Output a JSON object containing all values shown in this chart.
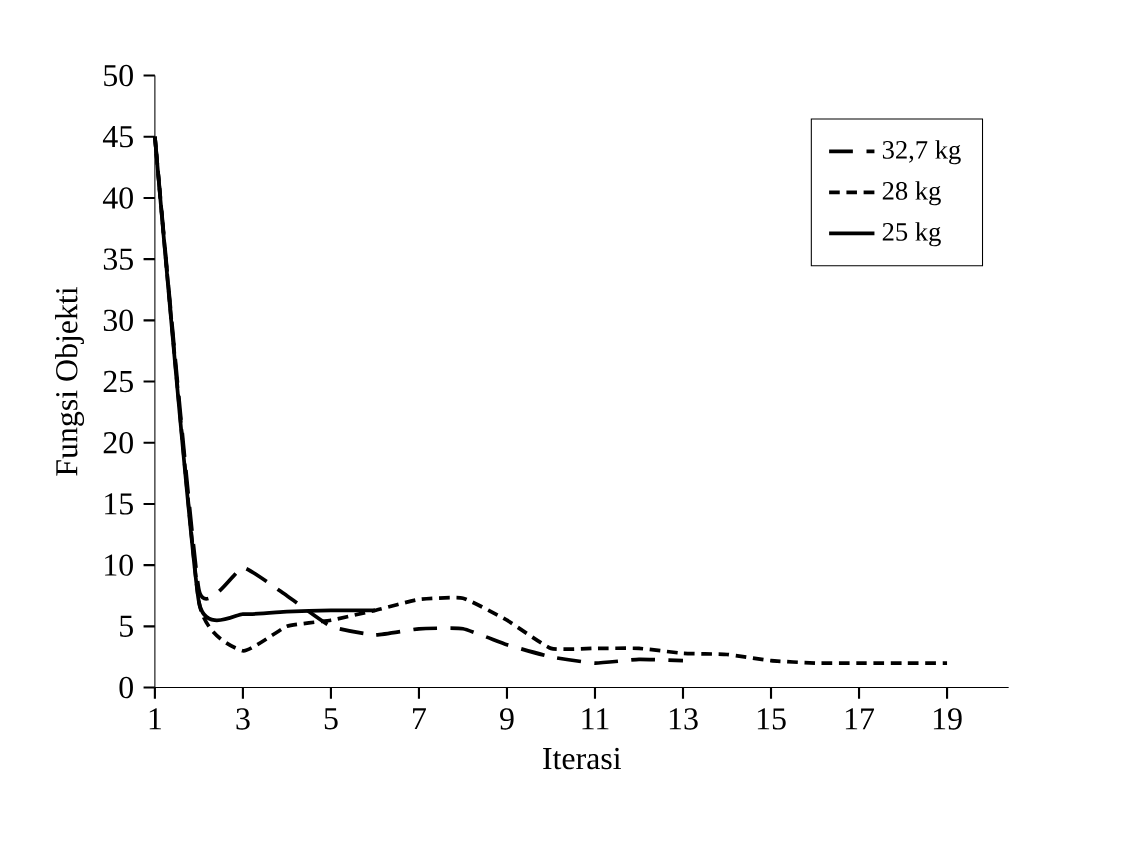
{
  "chart_data": {
    "type": "line",
    "xlabel": "Iterasi",
    "ylabel": "Fungsi Objekti",
    "x": [
      1,
      2,
      3,
      4,
      5,
      6,
      7,
      8,
      9,
      10,
      11,
      12,
      13,
      14,
      15,
      16,
      17,
      18,
      19
    ],
    "series": [
      {
        "name": "32,7 kg",
        "color": "#000000",
        "line_style": "dashed",
        "x": [
          1,
          2,
          3,
          4,
          5,
          6,
          7,
          8,
          9,
          10,
          11,
          12,
          13
        ],
        "values": [
          45,
          8,
          9.8,
          7.5,
          5,
          4.3,
          4.8,
          4.8,
          3.5,
          2.5,
          2,
          2.3,
          2.2
        ]
      },
      {
        "name": "28 kg",
        "color": "#000000",
        "line_style": "dotted",
        "values": [
          45,
          7,
          3,
          5,
          5.5,
          6.3,
          7.2,
          7.3,
          5.5,
          3.2,
          3.2,
          3.2,
          2.8,
          2.7,
          2.2,
          2,
          2,
          2,
          2
        ]
      },
      {
        "name": "25 kg",
        "color": "#000000",
        "line_style": "solid",
        "x": [
          1,
          2,
          3,
          4,
          5,
          6
        ],
        "values": [
          45,
          7,
          6,
          6.2,
          6.3,
          6.3
        ]
      }
    ],
    "xlim": [
      1,
      20.4
    ],
    "xticks": [
      1,
      3,
      5,
      7,
      9,
      11,
      13,
      15,
      17,
      19
    ],
    "ylim": [
      0,
      50
    ],
    "yticks": [
      0,
      5,
      10,
      15,
      20,
      25,
      30,
      35,
      40,
      45,
      50
    ],
    "legend": "top right",
    "grid": false,
    "marker": "none"
  }
}
